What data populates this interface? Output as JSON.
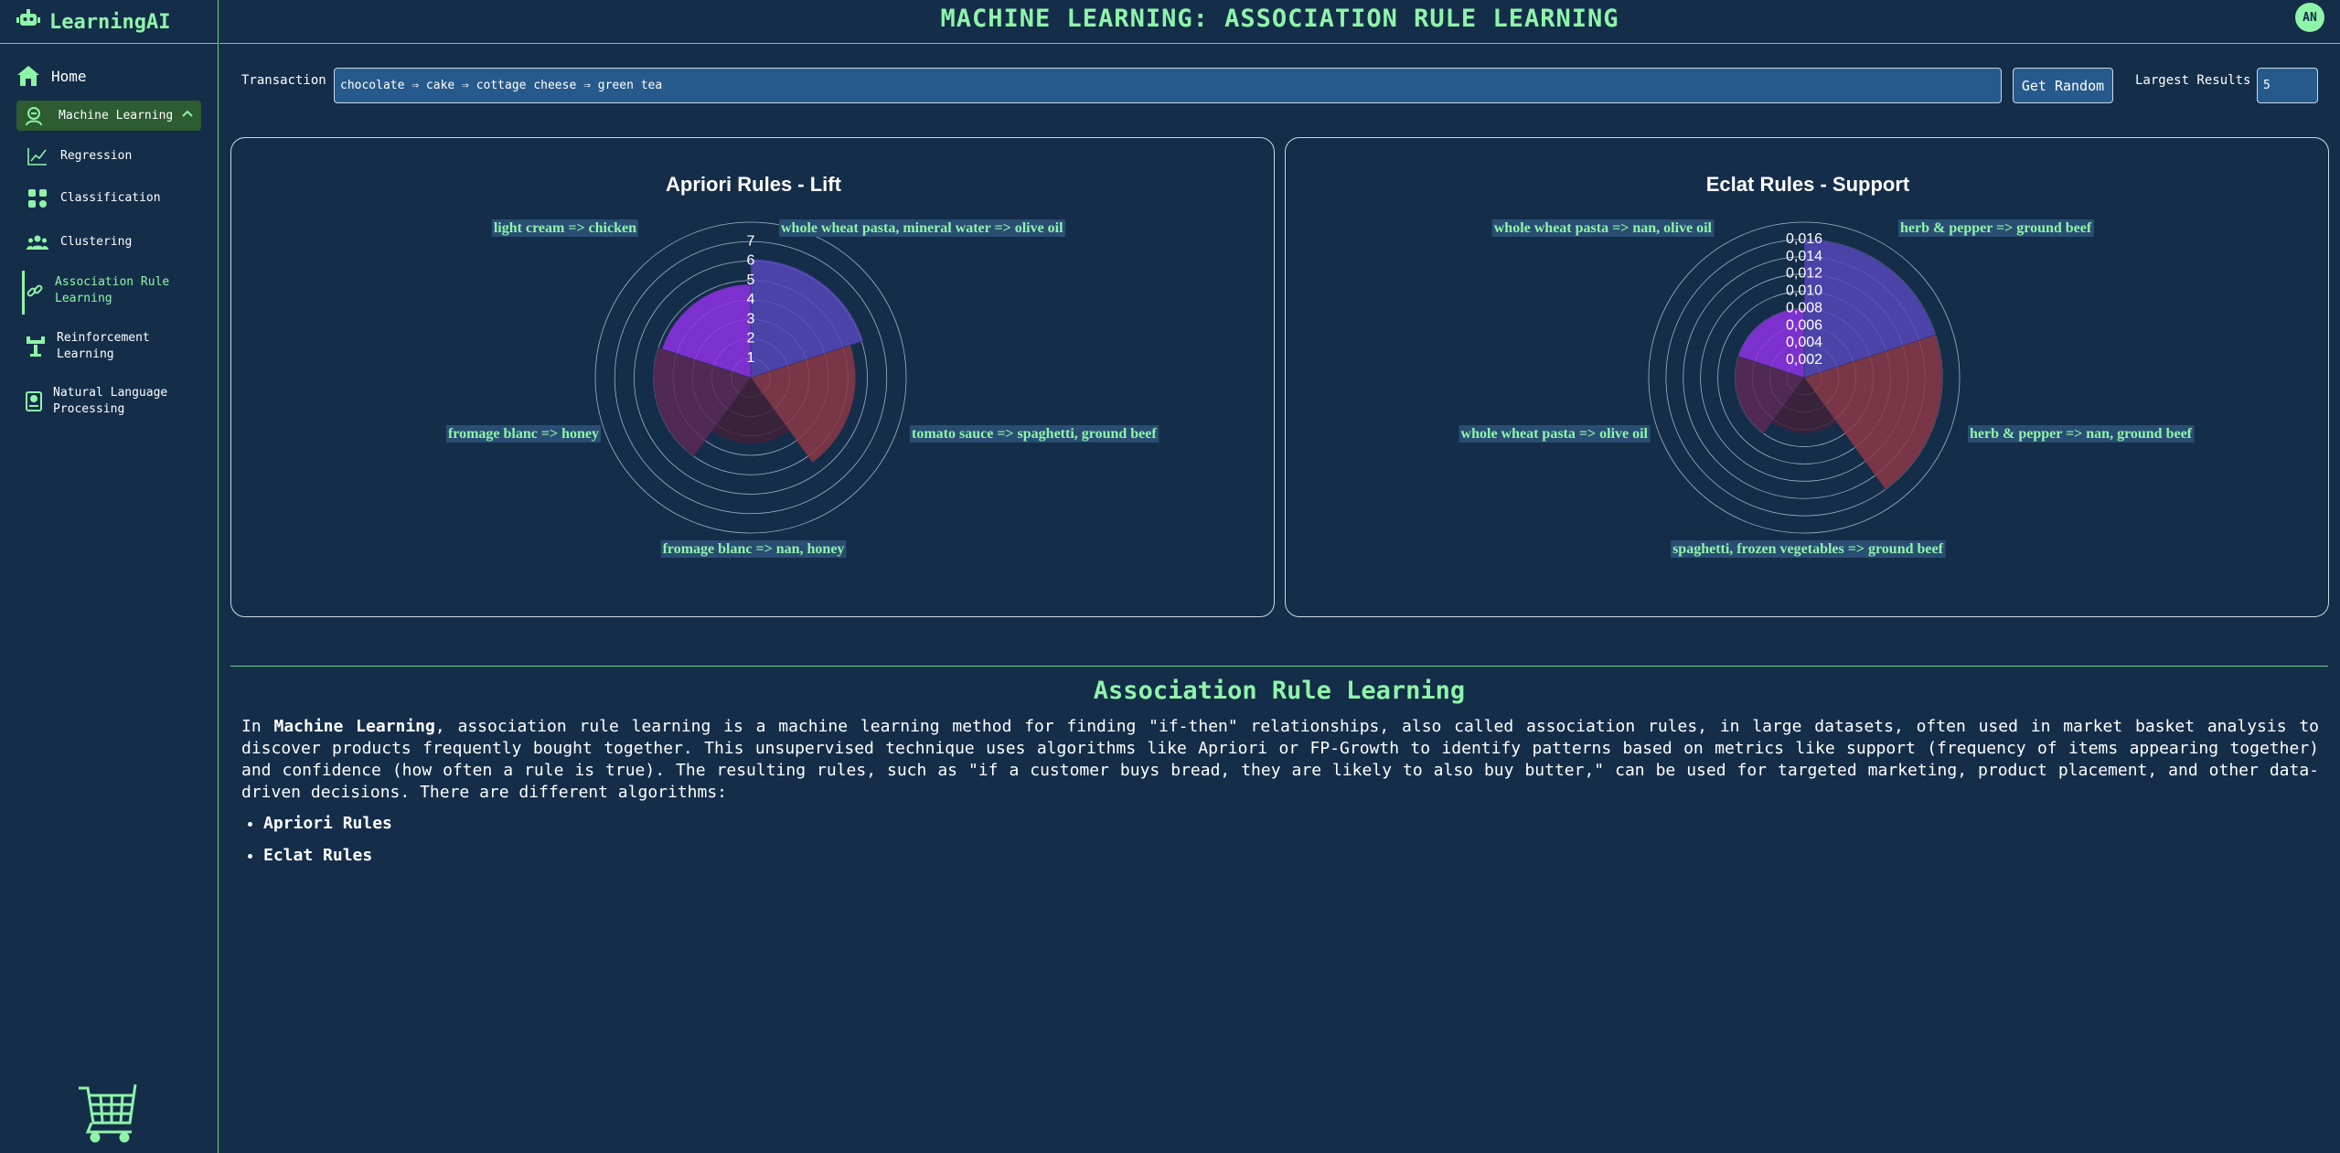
{
  "app": {
    "name": "LearningAI",
    "avatar_initials": "AN"
  },
  "header": {
    "title": "MACHINE LEARNING: ASSOCIATION RULE LEARNING"
  },
  "sidebar": {
    "home": "Home",
    "group": "Machine Learning",
    "items": [
      {
        "label": "Regression",
        "icon": "line-chart-icon"
      },
      {
        "label": "Classification",
        "icon": "grid-icon"
      },
      {
        "label": "Clustering",
        "icon": "users-icon"
      },
      {
        "label": "Association Rule Learning",
        "icon": "link-icon",
        "active": true
      },
      {
        "label": "Reinforcement Learning",
        "icon": "robot-arm-icon"
      },
      {
        "label": "Natural Language Processing",
        "icon": "book-icon"
      }
    ]
  },
  "controls": {
    "transaction_label": "Transaction",
    "transaction_value": "chocolate ⇒ cake ⇒ cottage cheese ⇒ green tea",
    "random_button": "Get Random",
    "largest_label": "Largest Results",
    "largest_value": "5"
  },
  "charts": [
    {
      "title": "Apriori Rules - Lift",
      "ticks": [
        "1",
        "2",
        "3",
        "4",
        "5",
        "6",
        "7"
      ]
    },
    {
      "title": "Eclat Rules - Support",
      "ticks": [
        "0,002",
        "0,004",
        "0,006",
        "0,008",
        "0,010",
        "0,012",
        "0,014",
        "0,016"
      ]
    }
  ],
  "chart_data": [
    {
      "type": "polar-area",
      "title": "Apriori Rules - Lift",
      "categories": [
        "whole wheat pasta, mineral water => olive oil",
        "tomato sauce => spaghetti, ground beef",
        "fromage blanc => nan, honey",
        "fromage blanc => honey",
        "light cream => chicken"
      ],
      "values": [
        6.1,
        5.4,
        3.4,
        5.0,
        4.8
      ],
      "colors": [
        "#5548b8",
        "#8a3846",
        "#3f2238",
        "#5a2a56",
        "#8e33e6"
      ],
      "rlim": [
        0,
        7
      ]
    },
    {
      "type": "polar-area",
      "title": "Eclat Rules - Support",
      "categories": [
        "herb & pepper => ground beef",
        "herb & pepper => nan, ground beef",
        "spaghetti, frozen vegetables => ground beef",
        "whole wheat pasta => olive oil",
        "whole wheat pasta => nan, olive oil"
      ],
      "values": [
        0.016,
        0.016,
        0.0064,
        0.008,
        0.008
      ],
      "colors": [
        "#5548b8",
        "#8a3846",
        "#3f2238",
        "#5a2a56",
        "#8e33e6"
      ],
      "rlim": [
        0,
        0.016
      ]
    }
  ],
  "description": {
    "title": "Association Rule Learning",
    "intro": "In ",
    "bold": "Machine Learning",
    "rest": ", association rule learning is a machine learning method for finding \"if-then\" relationships, also called association rules, in large datasets, often used in market basket analysis to discover products frequently bought together. This unsupervised technique uses algorithms like Apriori or FP-Growth to identify patterns based on metrics like support (frequency of items appearing together) and confidence (how often a rule is true). The resulting rules, such as \"if a customer buys bread, they are likely to also buy butter,\" can be used for targeted marketing, product placement, and other data-driven decisions. There are different algorithms:",
    "algorithms": [
      "Apriori Rules",
      "Eclat Rules"
    ]
  }
}
